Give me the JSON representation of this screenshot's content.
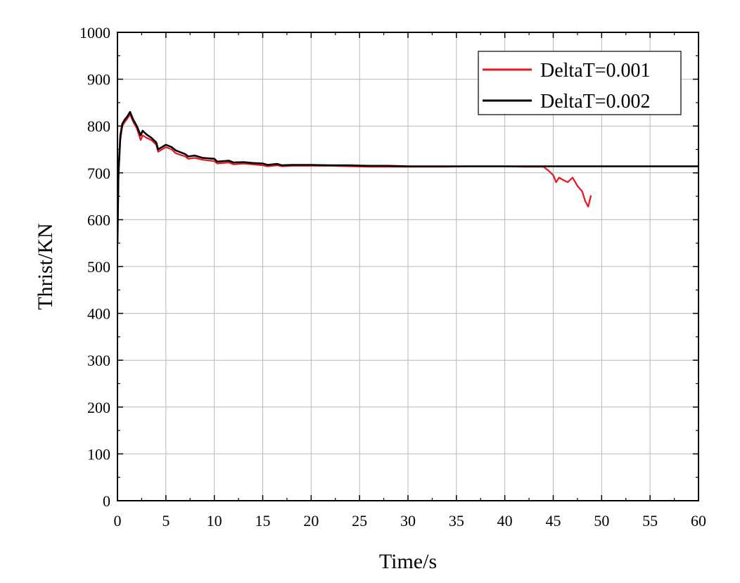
{
  "chart_data": {
    "type": "line",
    "title": "",
    "xlabel": "Time/s",
    "ylabel": "Thrist/KN",
    "xlim": [
      0,
      60
    ],
    "ylim": [
      0,
      1000
    ],
    "xticks": [
      0,
      5,
      10,
      15,
      20,
      25,
      30,
      35,
      40,
      45,
      50,
      55,
      60
    ],
    "yticks": [
      0,
      100,
      200,
      300,
      400,
      500,
      600,
      700,
      800,
      900,
      1000
    ],
    "grid": true,
    "legend_position": "top-right",
    "series": [
      {
        "name": "DeltaT=0.001",
        "color": "#e8151b",
        "x": [
          0,
          0.1,
          0.3,
          0.5,
          0.8,
          1.0,
          1.3,
          1.6,
          2.0,
          2.4,
          2.6,
          3.0,
          3.5,
          4.0,
          4.2,
          5.0,
          5.6,
          6.0,
          7.0,
          7.3,
          8.0,
          8.8,
          10.0,
          10.3,
          11.5,
          12.0,
          13.0,
          14.0,
          15.0,
          15.5,
          16.5,
          17.0,
          18.0,
          20.0,
          22.0,
          24.0,
          26.0,
          28.0,
          30.0,
          32.0,
          34.0,
          36.0,
          38.0,
          40.0,
          42.0,
          44.0,
          44.5,
          45.0,
          45.3,
          45.6,
          46.0,
          46.5,
          47.0,
          47.5,
          48.0,
          48.3,
          48.6,
          48.9
        ],
        "values": [
          550,
          690,
          770,
          800,
          810,
          815,
          825,
          810,
          795,
          770,
          780,
          775,
          770,
          760,
          745,
          755,
          750,
          742,
          735,
          730,
          732,
          728,
          725,
          720,
          722,
          718,
          720,
          718,
          716,
          714,
          716,
          714,
          715,
          715,
          715,
          714,
          713,
          713,
          713,
          713,
          713,
          714,
          714,
          714,
          713,
          713,
          705,
          695,
          680,
          690,
          685,
          680,
          690,
          672,
          660,
          640,
          628,
          652
        ]
      },
      {
        "name": "DeltaT=0.002",
        "color": "#000000",
        "x": [
          0,
          0.1,
          0.3,
          0.5,
          0.8,
          1.0,
          1.3,
          1.6,
          2.0,
          2.4,
          2.6,
          3.0,
          3.5,
          4.0,
          4.2,
          5.0,
          5.6,
          6.0,
          7.0,
          7.3,
          8.0,
          8.8,
          10.0,
          10.3,
          11.5,
          12.0,
          13.0,
          14.0,
          15.0,
          15.5,
          16.5,
          17.0,
          18.0,
          20.0,
          22.0,
          24.0,
          26.0,
          28.0,
          30.0,
          32.0,
          34.0,
          36.0,
          38.0,
          40.0,
          42.0,
          44.0,
          46.0,
          48.0,
          50.0,
          52.0,
          54.0,
          56.0,
          58.0,
          60.0
        ],
        "values": [
          550,
          700,
          780,
          805,
          815,
          820,
          830,
          815,
          800,
          780,
          790,
          782,
          775,
          765,
          750,
          760,
          755,
          748,
          740,
          735,
          737,
          732,
          730,
          724,
          726,
          722,
          723,
          721,
          720,
          717,
          719,
          716,
          717,
          717,
          716,
          716,
          715,
          715,
          714,
          714,
          714,
          714,
          714,
          714,
          714,
          714,
          714,
          714,
          714,
          714,
          714,
          714,
          714,
          714
        ]
      }
    ]
  }
}
